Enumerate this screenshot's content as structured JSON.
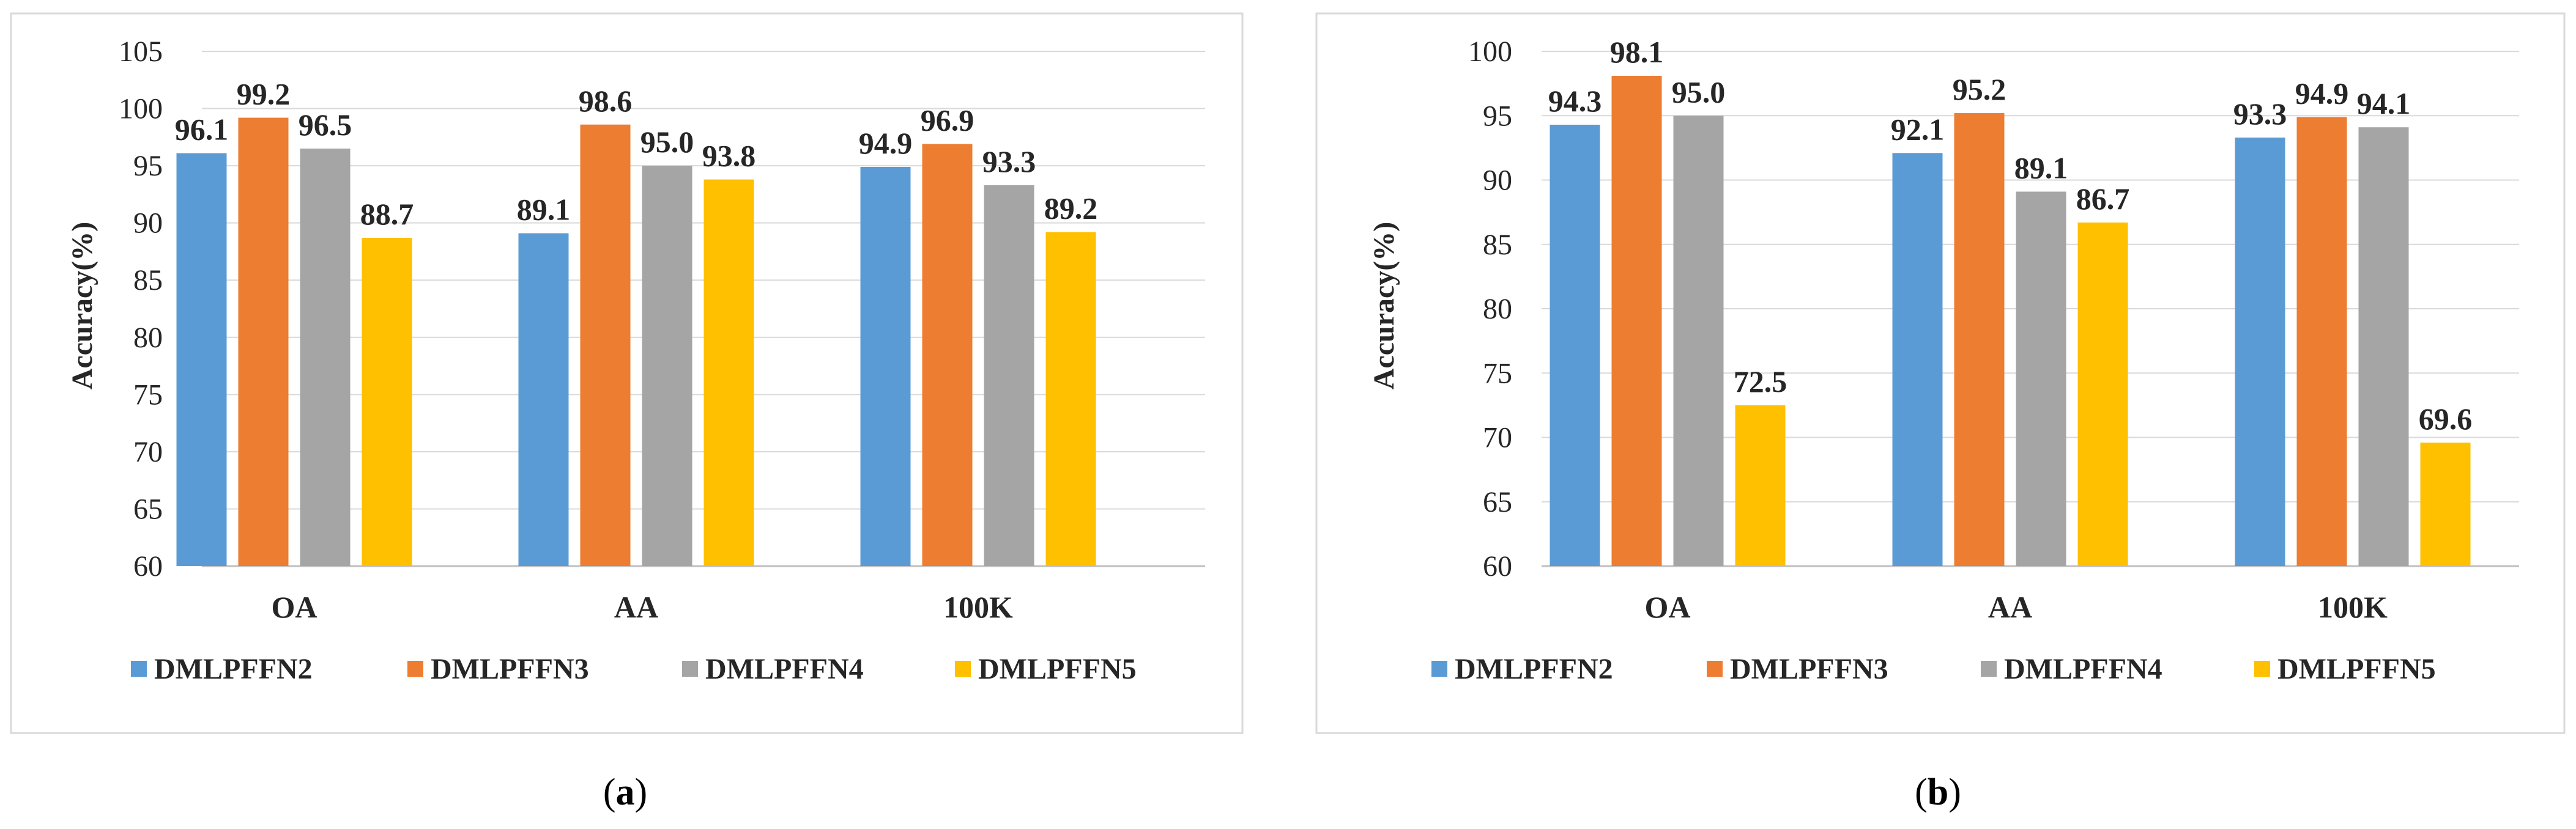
{
  "colors": {
    "frame": "#d9d9d9",
    "grid": "#d9d9d9",
    "axis": "#bfbfbf",
    "text": "#262626"
  },
  "chart_data": [
    {
      "id": "a",
      "type": "bar",
      "caption_letter": "a",
      "categories": [
        "OA",
        "AA",
        "100K"
      ],
      "series": [
        {
          "name": "DMLPFFN2",
          "color": "#5b9bd5",
          "values": [
            96.1,
            89.1,
            94.9
          ]
        },
        {
          "name": "DMLPFFN3",
          "color": "#ed7d31",
          "values": [
            99.2,
            98.6,
            96.9
          ]
        },
        {
          "name": "DMLPFFN4",
          "color": "#a5a5a5",
          "values": [
            96.5,
            95.0,
            93.3
          ]
        },
        {
          "name": "DMLPFFN5",
          "color": "#ffc000",
          "values": [
            88.7,
            93.8,
            89.2
          ]
        }
      ],
      "labels": [
        [
          "96.1",
          "89.1",
          "94.9"
        ],
        [
          "99.2",
          "98.6",
          "96.9"
        ],
        [
          "96.5",
          "95.0",
          "93.3"
        ],
        [
          "88.7",
          "93.8",
          "89.2"
        ]
      ],
      "ylabel": "Accuracy(%)",
      "ylim": [
        60,
        105
      ],
      "yticks": [
        60,
        65,
        70,
        75,
        80,
        85,
        90,
        95,
        100,
        105
      ],
      "ytick_labels": [
        "60",
        "65",
        "70",
        "75",
        "80",
        "85",
        "90",
        "95",
        "100",
        "105"
      ],
      "grid": true,
      "legend": "bottom"
    },
    {
      "id": "b",
      "type": "bar",
      "caption_letter": "b",
      "categories": [
        "OA",
        "AA",
        "100K"
      ],
      "series": [
        {
          "name": "DMLPFFN2",
          "color": "#5b9bd5",
          "values": [
            94.3,
            92.1,
            93.3
          ]
        },
        {
          "name": "DMLPFFN3",
          "color": "#ed7d31",
          "values": [
            98.1,
            95.2,
            94.9
          ]
        },
        {
          "name": "DMLPFFN4",
          "color": "#a5a5a5",
          "values": [
            95.0,
            89.1,
            94.1
          ]
        },
        {
          "name": "DMLPFFN5",
          "color": "#ffc000",
          "values": [
            72.5,
            86.7,
            69.6
          ]
        }
      ],
      "labels": [
        [
          "94.3",
          "92.1",
          "93.3"
        ],
        [
          "98.1",
          "95.2",
          "94.9"
        ],
        [
          "95.0",
          "89.1",
          "94.1"
        ],
        [
          "72.5",
          "86.7",
          "69.6"
        ]
      ],
      "ylabel": "Accuracy(%)",
      "ylim": [
        60,
        100
      ],
      "yticks": [
        60,
        65,
        70,
        75,
        80,
        85,
        90,
        95,
        100
      ],
      "ytick_labels": [
        "60",
        "65",
        "70",
        "75",
        "80",
        "85",
        "90",
        "95",
        "100"
      ],
      "grid": true,
      "legend": "bottom"
    }
  ]
}
